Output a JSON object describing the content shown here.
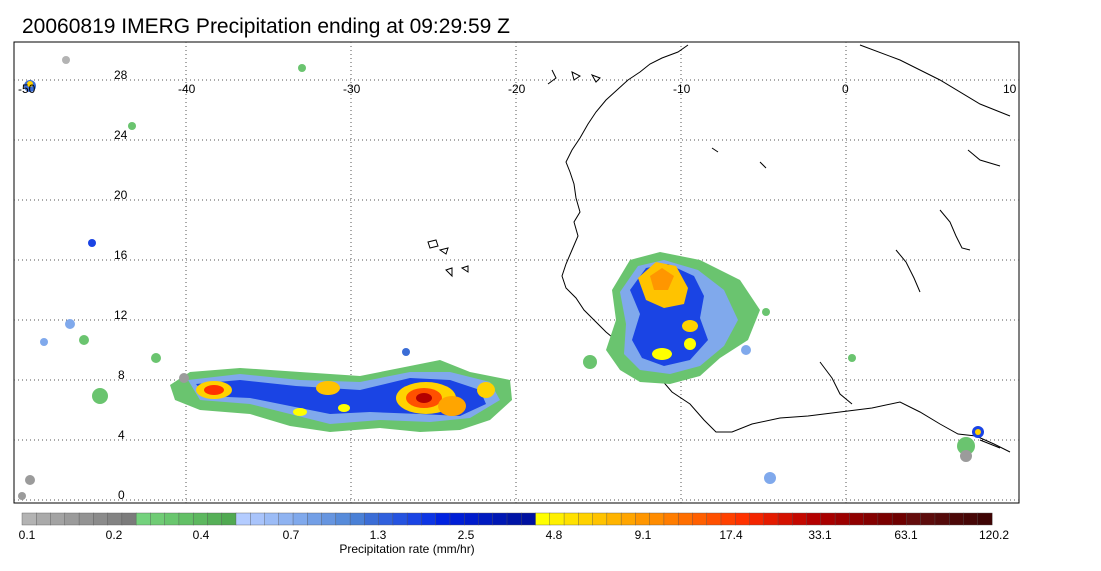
{
  "title": "20060819 IMERG Precipitation ending at 09:29:59 Z",
  "map": {
    "lon_labels": [
      "-50",
      "-40",
      "-30",
      "-20",
      "-10",
      "0",
      "10"
    ],
    "lat_labels": [
      "28",
      "24",
      "20",
      "16",
      "12",
      "8",
      "4",
      "0"
    ],
    "lon_range": [
      -50,
      10
    ],
    "lat_range": [
      -0.5,
      29.5
    ],
    "grid": "dotted"
  },
  "colorbar": {
    "title": "Precipitation rate (mm/hr)",
    "tick_labels": [
      "0.1",
      "0.2",
      "0.4",
      "0.7",
      "1.3",
      "2.5",
      "4.8",
      "9.1",
      "17.4",
      "33.1",
      "63.1",
      "120.2"
    ],
    "colors": [
      "#b3b3b3",
      "#aaaaaa",
      "#a3a3a3",
      "#9b9b9b",
      "#939393",
      "#8b8b8b",
      "#838383",
      "#7b7b7b",
      "#74d27d",
      "#70cc75",
      "#69c66e",
      "#63c066",
      "#5db85f",
      "#56b058",
      "#50a951",
      "#b4ccff",
      "#a9c4fb",
      "#9cbcf6",
      "#8fb3f1",
      "#80a9ec",
      "#739fe6",
      "#6695e0",
      "#578bda",
      "#4a80d6",
      "#3b6dd6",
      "#3060dd",
      "#2553e0",
      "#1a44e4",
      "#0d35e4",
      "#0022e0",
      "#001ed6",
      "#001bcc",
      "#001ac0",
      "#0017b4",
      "#0014a6",
      "#0011a0",
      "#ffff00",
      "#fff000",
      "#ffe100",
      "#ffd200",
      "#ffc300",
      "#ffb400",
      "#ffa500",
      "#ff9600",
      "#ff8c00",
      "#ff7d00",
      "#ff6e00",
      "#ff5f00",
      "#ff5000",
      "#ff4100",
      "#ff3200",
      "#f42500",
      "#e41b00",
      "#d41100",
      "#c40800",
      "#b40000",
      "#a80000",
      "#9c0000",
      "#900000",
      "#840000",
      "#7a0000",
      "#6e0000",
      "#640c0c",
      "#5c0c0c",
      "#540a0a",
      "#4c0808",
      "#460606",
      "#3e0404"
    ]
  }
}
